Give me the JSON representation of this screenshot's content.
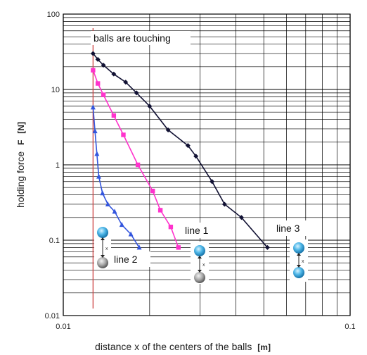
{
  "chart_data": {
    "type": "scatter",
    "x_scale": "log",
    "y_scale": "log",
    "xlim": [
      0.01,
      0.1
    ],
    "ylim": [
      0.01,
      100
    ],
    "x_ticks": [
      "0.01",
      "0.1"
    ],
    "y_ticks": [
      "100",
      "10",
      "1",
      "0.1",
      "0.01"
    ],
    "xlabel": "distance x of the centers of the balls",
    "xlabel_unit": "[m]",
    "ylabel": "holding force",
    "ylabel_symbol": "F",
    "ylabel_unit": "[N]",
    "grid": true,
    "touching_line_x": 0.0127,
    "annotations": {
      "touching": "balls are touching",
      "line1": "line 1",
      "line2": "line 2",
      "line3": "line 3",
      "x_marker": "x"
    },
    "series": [
      {
        "label_ref": "line2",
        "color": "#3355dd",
        "marker": "triangle",
        "x": [
          0.0127,
          0.0129,
          0.0131,
          0.0133,
          0.0137,
          0.0143,
          0.0151,
          0.016,
          0.0172,
          0.0184
        ],
        "y": [
          5.8,
          2.8,
          1.4,
          0.7,
          0.42,
          0.3,
          0.24,
          0.16,
          0.12,
          0.08
        ]
      },
      {
        "label_ref": "line1",
        "color": "#ff33cc",
        "marker": "square",
        "x": [
          0.0127,
          0.0132,
          0.0138,
          0.015,
          0.0162,
          0.0182,
          0.0205,
          0.0218,
          0.0237,
          0.0252
        ],
        "y": [
          18,
          12,
          8.5,
          4.5,
          2.5,
          1.0,
          0.45,
          0.25,
          0.15,
          0.08
        ]
      },
      {
        "label_ref": "line3",
        "color": "#111133",
        "marker": "diamond",
        "x": [
          0.0127,
          0.0132,
          0.0138,
          0.015,
          0.0165,
          0.018,
          0.02,
          0.0232,
          0.0272,
          0.029,
          0.033,
          0.0365,
          0.0418,
          0.0515
        ],
        "y": [
          30,
          25,
          21,
          16,
          12.5,
          9,
          6,
          2.9,
          1.8,
          1.3,
          0.6,
          0.3,
          0.2,
          0.08
        ]
      }
    ]
  }
}
